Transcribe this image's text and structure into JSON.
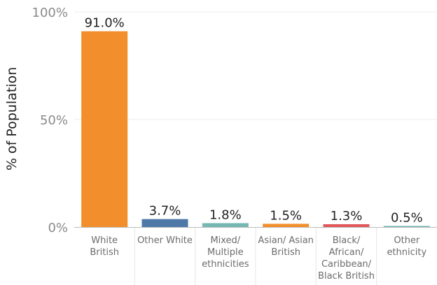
{
  "chart_data": {
    "type": "bar",
    "ylabel": "% of Population",
    "xlabel": "",
    "ylim": [
      0,
      100
    ],
    "yticks": [
      {
        "value": 0,
        "label": "0%"
      },
      {
        "value": 50,
        "label": "50%"
      },
      {
        "value": 100,
        "label": "100%"
      }
    ],
    "grid": true,
    "categories": [
      [
        "White",
        "British"
      ],
      [
        "Other White"
      ],
      [
        "Mixed/",
        "Multiple",
        "ethnicities"
      ],
      [
        "Asian/ Asian",
        "British"
      ],
      [
        "Black/",
        "African/",
        "Caribbean/",
        "Black British"
      ],
      [
        "Other",
        "ethnicity"
      ]
    ],
    "values": [
      91.0,
      3.7,
      1.8,
      1.5,
      1.3,
      0.5
    ],
    "data_labels": [
      "91.0%",
      "3.7%",
      "1.8%",
      "1.5%",
      "1.3%",
      "0.5%"
    ],
    "colors": [
      "#F28E2B",
      "#4E79A7",
      "#76B7B2",
      "#F28E2B",
      "#E15759",
      "#76B7B2"
    ]
  }
}
